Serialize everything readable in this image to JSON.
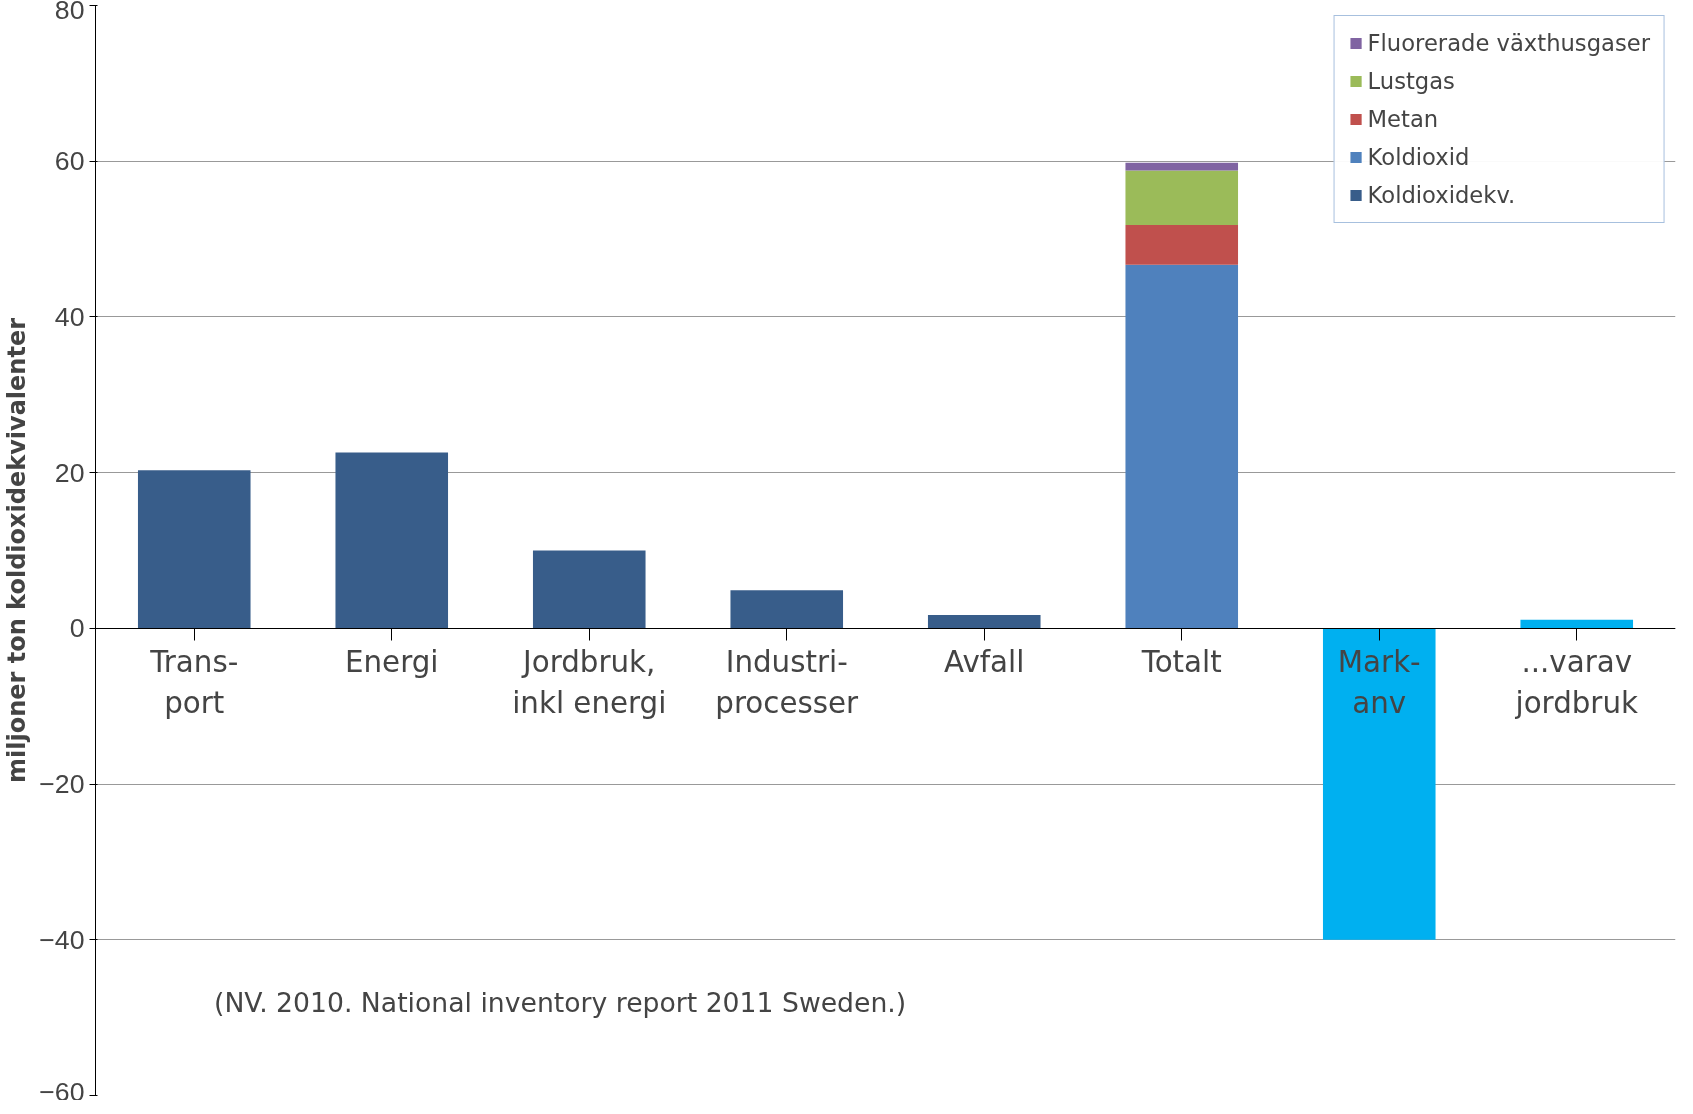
{
  "chart_data": {
    "type": "bar",
    "stacked": true,
    "categories": [
      "Trans-\nport",
      "Energi",
      "Jordbruk,\ninkl energi",
      "Industri-\nprocesser",
      "Avfall",
      "Totalt",
      "Mark-\nanv",
      "...varav\njordbruk"
    ],
    "series": [
      {
        "name": "Koldioxidekv.",
        "color": "#385d8a",
        "values": [
          20.3,
          22.6,
          10.0,
          4.9,
          1.7,
          null,
          null,
          null
        ]
      },
      {
        "name": "Koldioxid",
        "color": "#4f81bd",
        "values": [
          null,
          null,
          null,
          null,
          null,
          46.7,
          null,
          null
        ]
      },
      {
        "name": "Metan",
        "color": "#c0504d",
        "values": [
          null,
          null,
          null,
          null,
          null,
          5.1,
          null,
          null
        ]
      },
      {
        "name": "Lustgas",
        "color": "#9bbb59",
        "values": [
          null,
          null,
          null,
          null,
          null,
          7.0,
          null,
          null
        ]
      },
      {
        "name": "Fluorerade växthusgaser",
        "color": "#8064a2",
        "values": [
          null,
          null,
          null,
          null,
          null,
          1.0,
          null,
          null
        ]
      },
      {
        "color": "#00b0f0",
        "values": [
          null,
          null,
          null,
          null,
          null,
          null,
          -40.0,
          1.1
        ]
      }
    ],
    "ylabel": "miljoner ton koldioxidekvivalenter",
    "ylim": [
      -60,
      80
    ],
    "yticks": [
      -60,
      -40,
      -20,
      0,
      20,
      40,
      60,
      80
    ],
    "grid": "y",
    "legend": "top right",
    "annotations": [
      "(NV. 2010.  National inventory report 2011 Sweden.)"
    ]
  }
}
